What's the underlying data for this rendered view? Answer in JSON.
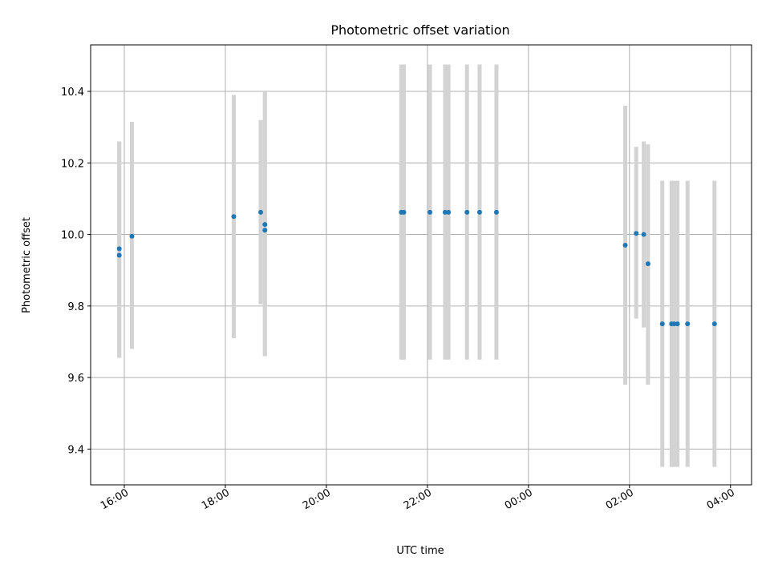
{
  "chart_data": {
    "type": "scatter",
    "title": "Photometric offset variation",
    "xlabel": "UTC time",
    "ylabel": "Photometric offset",
    "x_unit": "hours",
    "xlim": [
      "15:20",
      "04:25"
    ],
    "ylim": [
      9.3,
      10.53
    ],
    "grid": true,
    "x_ticks": [
      "16:00",
      "18:00",
      "20:00",
      "22:00",
      "00:00",
      "02:00",
      "04:00"
    ],
    "y_ticks": [
      "9.4",
      "9.6",
      "9.8",
      "10.0",
      "10.2",
      "10.4"
    ],
    "point_color": "#1f77b4",
    "errorbar_color": "#d3d3d3",
    "points": [
      {
        "x": "15:54",
        "y": 9.96,
        "ylo": 9.655,
        "yhi": 10.26
      },
      {
        "x": "15:54",
        "y": 9.942,
        "ylo": 9.655,
        "yhi": 10.26
      },
      {
        "x": "16:09",
        "y": 9.995,
        "ylo": 9.68,
        "yhi": 10.315
      },
      {
        "x": "18:10",
        "y": 10.05,
        "ylo": 9.71,
        "yhi": 10.39
      },
      {
        "x": "18:42",
        "y": 10.062,
        "ylo": 9.805,
        "yhi": 10.32
      },
      {
        "x": "18:47",
        "y": 10.028,
        "ylo": 9.66,
        "yhi": 10.4
      },
      {
        "x": "18:47",
        "y": 10.012,
        "ylo": 9.66,
        "yhi": 10.4
      },
      {
        "x": "21:29",
        "y": 10.062,
        "ylo": 9.65,
        "yhi": 10.475
      },
      {
        "x": "21:32",
        "y": 10.062,
        "ylo": 9.65,
        "yhi": 10.475
      },
      {
        "x": "22:03",
        "y": 10.062,
        "ylo": 9.65,
        "yhi": 10.475
      },
      {
        "x": "22:21",
        "y": 10.062,
        "ylo": 9.65,
        "yhi": 10.475
      },
      {
        "x": "22:25",
        "y": 10.062,
        "ylo": 9.65,
        "yhi": 10.475
      },
      {
        "x": "22:47",
        "y": 10.062,
        "ylo": 9.65,
        "yhi": 10.475
      },
      {
        "x": "23:02",
        "y": 10.062,
        "ylo": 9.65,
        "yhi": 10.475
      },
      {
        "x": "23:22",
        "y": 10.062,
        "ylo": 9.65,
        "yhi": 10.475
      },
      {
        "x": "01:55",
        "y": 9.97,
        "ylo": 9.58,
        "yhi": 10.36
      },
      {
        "x": "02:08",
        "y": 10.003,
        "ylo": 9.765,
        "yhi": 10.245
      },
      {
        "x": "02:17",
        "y": 10.0,
        "ylo": 9.74,
        "yhi": 10.26
      },
      {
        "x": "02:22",
        "y": 9.918,
        "ylo": 9.58,
        "yhi": 10.252
      },
      {
        "x": "02:39",
        "y": 9.75,
        "ylo": 9.35,
        "yhi": 10.15
      },
      {
        "x": "02:50",
        "y": 9.75,
        "ylo": 9.35,
        "yhi": 10.15
      },
      {
        "x": "02:53",
        "y": 9.75,
        "ylo": 9.35,
        "yhi": 10.15
      },
      {
        "x": "02:57",
        "y": 9.75,
        "ylo": 9.35,
        "yhi": 10.15
      },
      {
        "x": "03:09",
        "y": 9.75,
        "ylo": 9.35,
        "yhi": 10.15
      },
      {
        "x": "03:41",
        "y": 9.75,
        "ylo": 9.35,
        "yhi": 10.15
      }
    ]
  }
}
